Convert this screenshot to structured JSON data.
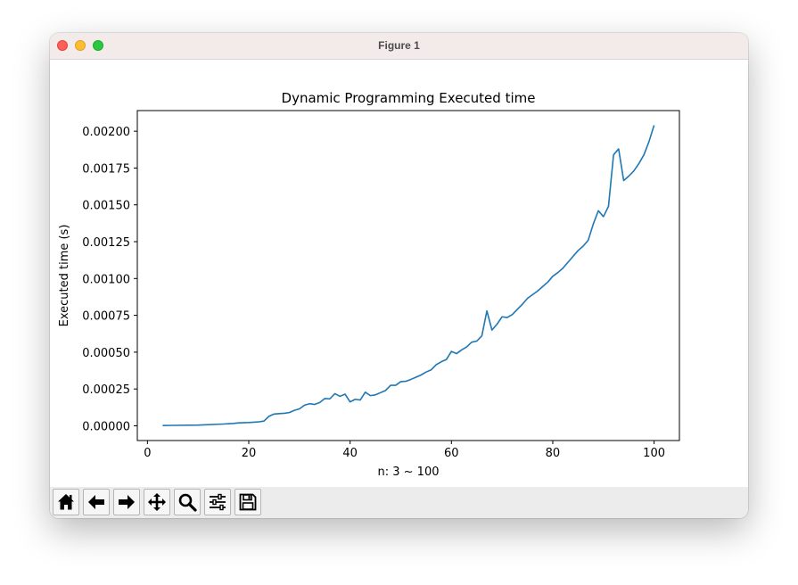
{
  "window": {
    "title": "Figure 1"
  },
  "toolbar": {
    "buttons": [
      {
        "icon": "home-icon"
      },
      {
        "icon": "back-arrow-icon"
      },
      {
        "icon": "forward-arrow-icon"
      },
      {
        "icon": "pan-move-icon"
      },
      {
        "icon": "zoom-magnifier-icon"
      },
      {
        "icon": "configure-subplots-icon"
      },
      {
        "icon": "save-floppy-icon"
      }
    ]
  },
  "colors": {
    "line": "#1f77b4",
    "titlebar": "#f3eaea",
    "toolbar": "#ececec"
  },
  "chart_data": {
    "type": "line",
    "title": "Dynamic Programming Executed time",
    "xlabel": "n: 3 ~ 100",
    "ylabel": "Executed time (s)",
    "xlim": [
      -2,
      105
    ],
    "ylim": [
      -0.0001,
      0.00214
    ],
    "xticks": [
      0,
      20,
      40,
      60,
      80,
      100
    ],
    "xtick_labels": [
      "0",
      "20",
      "40",
      "60",
      "80",
      "100"
    ],
    "yticks": [
      0,
      0.00025,
      0.0005,
      0.00075,
      0.001,
      0.00125,
      0.0015,
      0.00175,
      0.002
    ],
    "ytick_labels": [
      "0.00000",
      "0.00025",
      "0.00050",
      "0.00075",
      "0.00100",
      "0.00125",
      "0.00150",
      "0.00175",
      "0.00200"
    ],
    "grid": false,
    "series": [
      {
        "x": [
          3,
          5,
          10,
          15,
          17,
          18,
          20,
          22,
          23,
          24,
          25,
          26,
          27,
          28,
          29,
          30,
          31,
          32,
          33,
          34,
          35,
          36,
          37,
          38,
          39,
          40,
          41,
          42,
          43,
          44,
          45,
          46,
          47,
          48,
          49,
          50,
          51,
          52,
          53,
          54,
          55,
          56,
          57,
          58,
          59,
          60,
          61,
          62,
          63,
          64,
          65,
          66,
          67,
          68,
          69,
          70,
          71,
          72,
          73,
          74,
          75,
          76,
          77,
          78,
          79,
          80,
          81,
          82,
          83,
          84,
          85,
          86,
          87,
          88,
          89,
          90,
          91,
          92,
          93,
          94,
          95,
          96,
          97,
          98,
          99,
          100
        ],
        "y": [
          2e-06,
          3e-06,
          5e-06,
          1.2e-05,
          1.6e-05,
          2e-05,
          2.2e-05,
          2.7e-05,
          3.2e-05,
          6.5e-05,
          8e-05,
          8.3e-05,
          8.5e-05,
          9e-05,
          0.000105,
          0.000115,
          0.00014,
          0.00015,
          0.000145,
          0.000158,
          0.000185,
          0.000183,
          0.000218,
          0.0002,
          0.000215,
          0.000162,
          0.00018,
          0.000175,
          0.000228,
          0.000205,
          0.00021,
          0.000225,
          0.00024,
          0.000275,
          0.000275,
          0.0003,
          0.000302,
          0.000315,
          0.00033,
          0.000345,
          0.000365,
          0.00038,
          0.000415,
          0.000435,
          0.00045,
          0.000505,
          0.00049,
          0.000515,
          0.000535,
          0.000568,
          0.000575,
          0.00061,
          0.00078,
          0.00065,
          0.00069,
          0.00074,
          0.000735,
          0.000755,
          0.00079,
          0.000825,
          0.000865,
          0.00089,
          0.000915,
          0.000945,
          0.000975,
          0.001015,
          0.00104,
          0.00107,
          0.00111,
          0.00115,
          0.00119,
          0.00122,
          0.00126,
          0.00137,
          0.00146,
          0.00142,
          0.00149,
          0.00184,
          0.00188,
          0.001665,
          0.001695,
          0.00173,
          0.00178,
          0.00184,
          0.00193,
          0.00204
        ]
      }
    ]
  }
}
